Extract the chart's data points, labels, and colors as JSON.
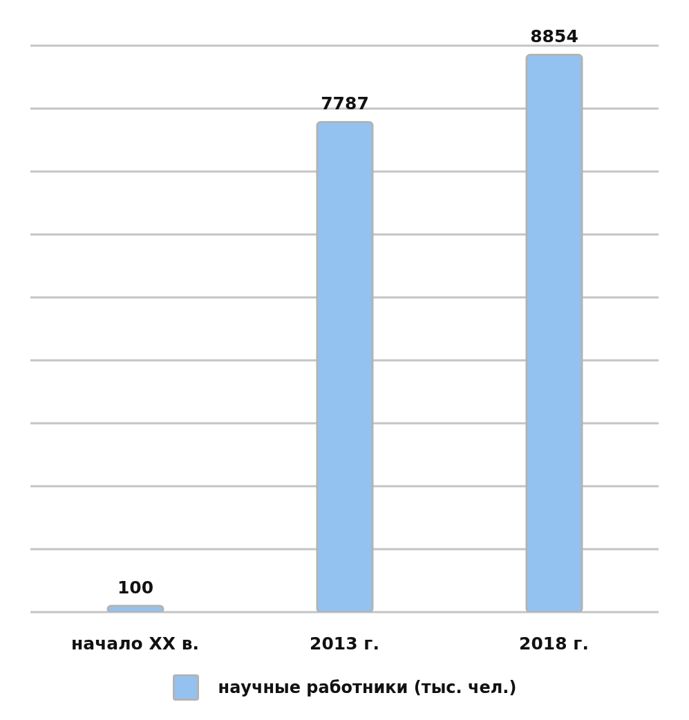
{
  "chart_data": {
    "type": "bar",
    "categories": [
      "начало XX в.",
      "2013 г.",
      "2018 г."
    ],
    "series": [
      {
        "name": "научные работники (тыс. чел.)",
        "color": "#93c2f0",
        "values": [
          100,
          7787,
          8854
        ]
      }
    ],
    "ylim": [
      0,
      9000
    ],
    "yticks": [
      {
        "value": 0,
        "label": null
      },
      {
        "value": 1000,
        "label": null
      },
      {
        "value": 2000,
        "label": null
      },
      {
        "value": 3000,
        "label": null
      },
      {
        "value": 4000,
        "label": null
      },
      {
        "value": 5000,
        "label": null
      },
      {
        "value": 6000,
        "label": null
      },
      {
        "value": 7000,
        "label": null
      },
      {
        "value": 8000,
        "label": null
      },
      {
        "value": 9000,
        "label": null
      }
    ],
    "tick_labels": "x",
    "grid": "y",
    "legend": "bottom",
    "data_labels": true
  }
}
